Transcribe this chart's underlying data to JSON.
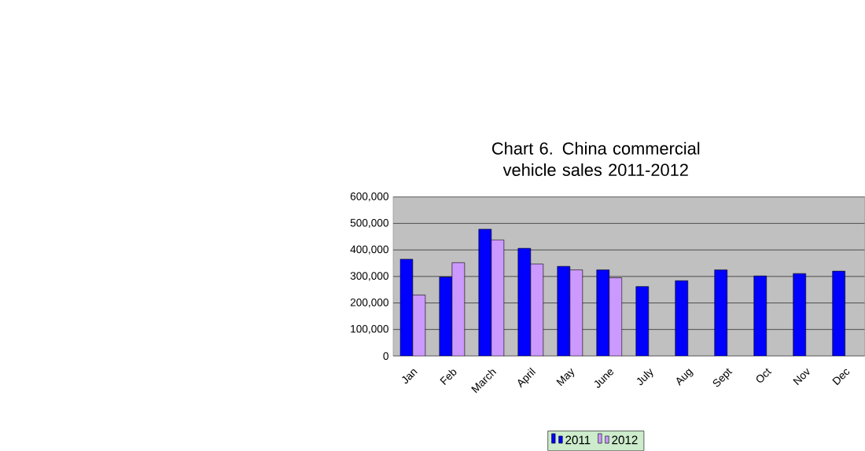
{
  "chart_data": {
    "type": "bar",
    "title": "Chart 6. China commercial vehicle sales 2011-2012",
    "categories": [
      "Jan",
      "Feb",
      "March",
      "April",
      "May",
      "June",
      "July",
      "Aug",
      "Sept",
      "Oct",
      "Nov",
      "Dec"
    ],
    "series": [
      {
        "name": "2011",
        "color": "#0000ff",
        "values": [
          365000,
          298000,
          478000,
          406000,
          338000,
          325000,
          262000,
          284000,
          325000,
          302000,
          311000,
          320000
        ]
      },
      {
        "name": "2012",
        "color": "#cc99ff",
        "values": [
          230000,
          352000,
          438000,
          347000,
          325000,
          295000,
          null,
          null,
          null,
          null,
          null,
          null
        ]
      }
    ],
    "ylim": [
      0,
      600000
    ],
    "yticks": [
      0,
      {
        "value": 100000,
        "label": "100,000"
      },
      {
        "value": 200000,
        "label": "200,000"
      },
      {
        "value": 300000,
        "label": "300,000"
      },
      {
        "value": 400000,
        "label": "400,000"
      },
      {
        "value": 500000,
        "label": "500,000"
      },
      {
        "value": 600000,
        "label": "600,000"
      }
    ],
    "grid": "y",
    "legend": "bottom"
  }
}
